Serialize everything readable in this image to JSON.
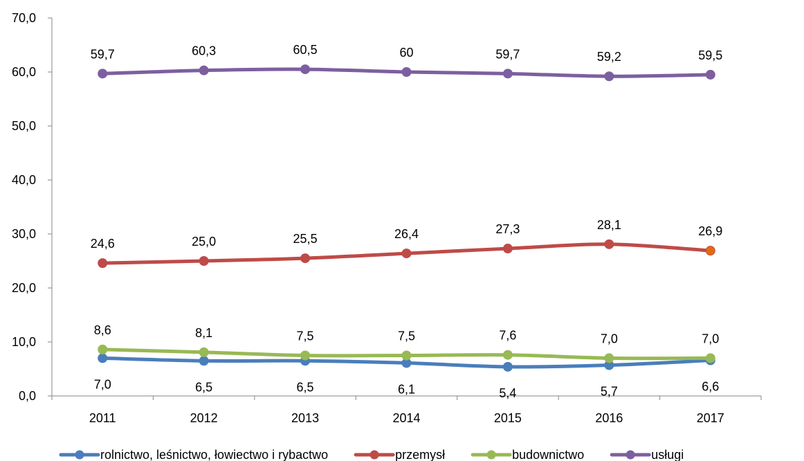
{
  "chart_data": {
    "type": "line",
    "title": "",
    "xlabel": "",
    "ylabel": "",
    "categories": [
      "2011",
      "2012",
      "2013",
      "2014",
      "2015",
      "2016",
      "2017"
    ],
    "y_ticks": [
      "0,0",
      "10,0",
      "20,0",
      "30,0",
      "40,0",
      "50,0",
      "60,0",
      "70,0"
    ],
    "ylim": [
      0,
      70
    ],
    "grid": false,
    "legend_position": "bottom",
    "series": [
      {
        "name": "rolnictwo, leśnictwo, łowiectwo i rybactwo",
        "color": "#4a7ebb",
        "values": [
          7.0,
          6.5,
          6.5,
          6.1,
          5.4,
          5.7,
          6.6
        ],
        "labels": [
          "7,0",
          "6,5",
          "6,5",
          "6,1",
          "5,4",
          "5,7",
          "6,6"
        ],
        "label_position": "below"
      },
      {
        "name": "przemysł",
        "color": "#be4b48",
        "values": [
          24.6,
          25.0,
          25.5,
          26.4,
          27.3,
          28.1,
          26.9
        ],
        "labels": [
          "24,6",
          "25,0",
          "25,5",
          "26,4",
          "27,3",
          "28,1",
          "26,9"
        ],
        "label_position": "above",
        "last_marker_color": "#e36c0a"
      },
      {
        "name": "budownictwo",
        "color": "#98b954",
        "values": [
          8.6,
          8.1,
          7.5,
          7.5,
          7.6,
          7.0,
          7.0
        ],
        "labels": [
          "8,6",
          "8,1",
          "7,5",
          "7,5",
          "7,6",
          "7,0",
          "7,0"
        ],
        "label_position": "above"
      },
      {
        "name": "usługi",
        "color": "#7d5fa0",
        "values": [
          59.7,
          60.3,
          60.5,
          60.0,
          59.7,
          59.2,
          59.5
        ],
        "labels": [
          "59,7",
          "60,3",
          "60,5",
          "60",
          "59,7",
          "59,2",
          "59,5"
        ],
        "label_position": "above"
      }
    ]
  }
}
